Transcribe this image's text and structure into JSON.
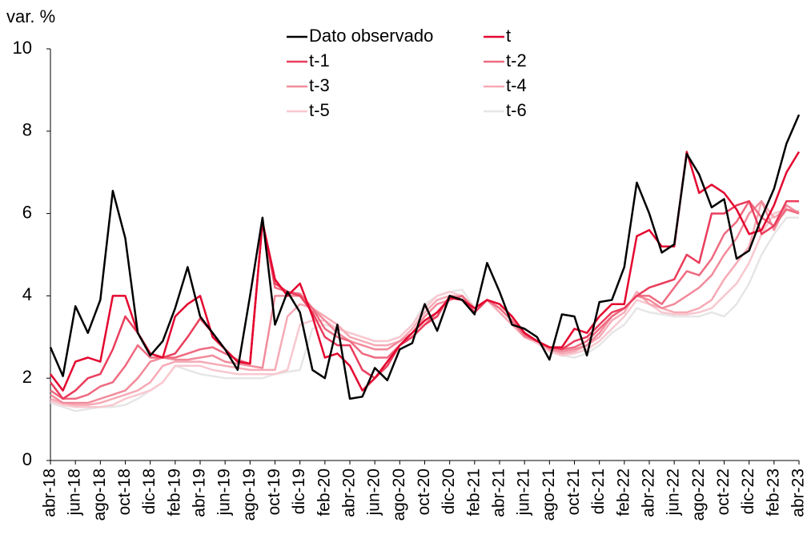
{
  "chart_data": {
    "type": "line",
    "ylabel": "var. %",
    "categories": [
      "abr-18",
      null,
      "jun-18",
      null,
      "ago-18",
      null,
      "oct-18",
      null,
      "dic-18",
      null,
      "feb-19",
      null,
      "abr-19",
      null,
      "jun-19",
      null,
      "ago-19",
      null,
      "oct-19",
      null,
      "dic-19",
      null,
      "feb-20",
      null,
      "abr-20",
      null,
      "jun-20",
      null,
      "ago-20",
      null,
      "oct-20",
      null,
      "dic-20",
      null,
      "feb-21",
      null,
      "abr-21",
      null,
      "jun-21",
      null,
      "ago-21",
      null,
      "oct-21",
      null,
      "dic-21",
      null,
      "feb-22",
      null,
      "abr-22",
      null,
      "jun-22",
      null,
      "ago-22",
      null,
      "oct-22",
      null,
      "dic-22",
      null,
      "feb-23",
      null,
      "abr-23"
    ],
    "ylim": [
      0,
      10
    ],
    "yticks": [
      0,
      2,
      4,
      6,
      8,
      10
    ],
    "series": [
      {
        "name": "Dato observado",
        "color": "#000000",
        "values": [
          2.75,
          2.05,
          3.75,
          3.1,
          3.9,
          6.55,
          5.4,
          3.1,
          2.55,
          2.9,
          3.7,
          4.7,
          3.5,
          3.1,
          2.7,
          2.2,
          4.0,
          5.9,
          3.3,
          4.1,
          3.6,
          2.2,
          2.0,
          3.3,
          1.5,
          1.55,
          2.25,
          1.95,
          2.7,
          2.85,
          3.8,
          3.15,
          4.0,
          3.9,
          3.55,
          4.8,
          4.1,
          3.3,
          3.2,
          3.0,
          2.45,
          3.55,
          3.5,
          2.55,
          3.85,
          3.9,
          4.7,
          6.75,
          6.0,
          5.05,
          5.25,
          7.45,
          6.95,
          6.15,
          6.35,
          4.9,
          5.1,
          5.9,
          6.6,
          7.7,
          8.4
        ]
      },
      {
        "name": "t",
        "color": "#e3072f",
        "values": [
          2.1,
          1.7,
          2.4,
          2.5,
          2.4,
          4.0,
          4.0,
          3.1,
          2.6,
          2.5,
          3.5,
          3.8,
          4.0,
          3.0,
          2.7,
          2.4,
          2.35,
          5.8,
          4.4,
          4.0,
          4.3,
          3.5,
          2.5,
          2.6,
          2.3,
          1.7,
          2.0,
          2.4,
          2.8,
          3.1,
          3.4,
          3.6,
          3.95,
          3.9,
          3.7,
          3.9,
          3.8,
          3.5,
          3.1,
          2.9,
          2.75,
          2.75,
          3.2,
          3.1,
          3.5,
          3.8,
          3.8,
          5.45,
          5.6,
          5.2,
          5.2,
          7.5,
          6.5,
          6.7,
          6.5,
          6.1,
          5.5,
          5.6,
          6.2,
          7.0,
          7.5
        ]
      },
      {
        "name": "t-1",
        "color": "#ea3d5c",
        "values": [
          1.9,
          1.5,
          1.7,
          2.0,
          2.1,
          2.7,
          3.5,
          3.1,
          2.6,
          2.5,
          2.6,
          3.0,
          3.45,
          3.1,
          2.7,
          2.4,
          2.35,
          5.8,
          4.3,
          4.1,
          4.0,
          3.6,
          3.0,
          2.8,
          2.8,
          2.2,
          2.0,
          2.3,
          2.8,
          3.0,
          3.3,
          3.5,
          4.0,
          3.9,
          3.6,
          3.9,
          3.8,
          3.5,
          3.1,
          2.9,
          2.75,
          2.7,
          2.9,
          3.0,
          3.3,
          3.6,
          3.7,
          4.0,
          4.2,
          4.3,
          4.4,
          5.0,
          4.8,
          6.0,
          6.0,
          6.2,
          6.3,
          5.5,
          5.7,
          6.3,
          6.3
        ]
      },
      {
        "name": "t-2",
        "color": "#ef6a80",
        "values": [
          1.7,
          1.5,
          1.5,
          1.6,
          1.8,
          1.9,
          2.3,
          2.8,
          2.5,
          2.5,
          2.5,
          2.6,
          2.7,
          2.75,
          2.6,
          2.45,
          2.35,
          5.8,
          4.2,
          4.1,
          4.05,
          3.7,
          3.2,
          3.0,
          2.9,
          2.6,
          2.5,
          2.5,
          2.8,
          3.0,
          3.3,
          3.6,
          3.9,
          4.0,
          3.6,
          3.9,
          3.7,
          3.4,
          3.05,
          2.9,
          2.75,
          2.7,
          2.75,
          2.9,
          3.2,
          3.5,
          3.7,
          4.0,
          4.0,
          3.8,
          4.2,
          4.6,
          4.5,
          4.9,
          5.5,
          5.8,
          6.3,
          5.9,
          5.7,
          6.1,
          6.0
        ]
      },
      {
        "name": "t-3",
        "color": "#f28b9b",
        "values": [
          1.6,
          1.4,
          1.4,
          1.4,
          1.5,
          1.6,
          1.7,
          2.0,
          2.4,
          2.5,
          2.45,
          2.45,
          2.5,
          2.55,
          2.4,
          2.35,
          2.3,
          2.25,
          4.0,
          4.0,
          4.0,
          3.7,
          3.4,
          3.1,
          2.9,
          2.8,
          2.7,
          2.7,
          2.9,
          3.1,
          3.5,
          3.8,
          3.9,
          4.0,
          3.7,
          3.9,
          3.7,
          3.4,
          3.0,
          2.9,
          2.7,
          2.65,
          2.7,
          2.8,
          3.1,
          3.5,
          3.7,
          4.0,
          3.9,
          3.7,
          3.8,
          4.0,
          4.2,
          4.5,
          5.0,
          5.4,
          6.0,
          6.3,
          5.6,
          6.2,
          6.0
        ]
      },
      {
        "name": "t-4",
        "color": "#f5aab5",
        "values": [
          1.5,
          1.4,
          1.35,
          1.35,
          1.4,
          1.5,
          1.6,
          1.7,
          1.9,
          2.3,
          2.4,
          2.4,
          2.4,
          2.35,
          2.3,
          2.25,
          2.2,
          2.2,
          2.2,
          3.5,
          3.8,
          3.7,
          3.5,
          3.3,
          3.0,
          2.9,
          2.8,
          2.8,
          2.9,
          3.2,
          3.6,
          3.9,
          4.0,
          4.0,
          3.7,
          3.9,
          3.6,
          3.3,
          3.0,
          2.9,
          2.7,
          2.6,
          2.65,
          2.8,
          3.0,
          3.4,
          3.6,
          4.1,
          3.8,
          3.7,
          3.6,
          3.6,
          3.7,
          3.9,
          4.4,
          4.8,
          5.2,
          6.3,
          5.9,
          6.1,
          6.05
        ]
      },
      {
        "name": "t-5",
        "color": "#f8c8cf",
        "values": [
          1.45,
          1.35,
          1.3,
          1.3,
          1.3,
          1.35,
          1.5,
          1.6,
          1.7,
          1.9,
          2.3,
          2.3,
          2.3,
          2.2,
          2.15,
          2.1,
          2.1,
          2.1,
          2.1,
          2.2,
          3.3,
          3.4,
          3.4,
          3.2,
          3.1,
          3.0,
          2.9,
          2.9,
          3.0,
          3.3,
          3.7,
          4.0,
          4.1,
          4.0,
          3.7,
          3.9,
          3.6,
          3.3,
          3.0,
          2.85,
          2.65,
          2.55,
          2.6,
          2.7,
          2.9,
          3.2,
          3.5,
          3.9,
          3.8,
          3.6,
          3.55,
          3.55,
          3.6,
          3.7,
          4.0,
          4.3,
          4.8,
          5.5,
          6.0,
          6.1,
          6.0
        ]
      },
      {
        "name": "t-6",
        "color": "#e6e6e6",
        "values": [
          1.4,
          1.3,
          1.2,
          1.25,
          1.3,
          1.3,
          1.35,
          1.5,
          1.7,
          1.9,
          2.3,
          2.2,
          2.1,
          2.05,
          2.0,
          2.0,
          2.0,
          2.0,
          2.1,
          2.15,
          2.2,
          3.2,
          3.3,
          3.2,
          3.1,
          3.0,
          2.9,
          2.9,
          3.0,
          3.3,
          3.8,
          4.0,
          4.1,
          4.15,
          3.7,
          3.9,
          3.6,
          3.3,
          3.05,
          2.9,
          2.7,
          2.55,
          2.5,
          2.6,
          2.8,
          3.1,
          3.3,
          3.7,
          3.6,
          3.55,
          3.5,
          3.5,
          3.5,
          3.6,
          3.5,
          3.8,
          4.3,
          5.0,
          5.5,
          5.9,
          5.9
        ]
      }
    ]
  }
}
